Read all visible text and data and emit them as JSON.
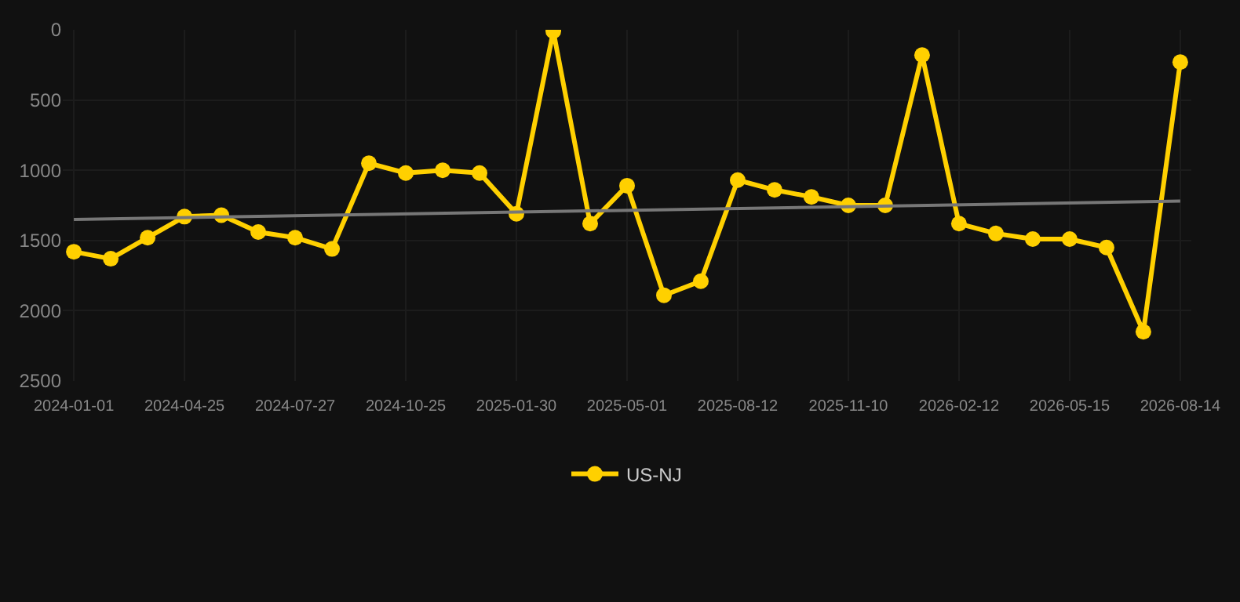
{
  "chart_data": {
    "type": "line",
    "categories": [
      "2024-01-01",
      null,
      null,
      "2024-04-25",
      null,
      null,
      "2024-07-27",
      null,
      null,
      "2024-10-25",
      null,
      null,
      "2025-01-30",
      null,
      null,
      "2025-05-01",
      null,
      null,
      "2025-08-12",
      null,
      null,
      "2025-11-10",
      null,
      null,
      "2026-02-12",
      null,
      null,
      "2026-05-15",
      null,
      null,
      "2026-08-14"
    ],
    "series": [
      {
        "name": "US-NJ",
        "color": "#ffd000",
        "marker": "circle",
        "values": [
          1580,
          1630,
          1480,
          1330,
          1320,
          1440,
          1480,
          1560,
          950,
          1020,
          1000,
          1020,
          1310,
          10,
          1380,
          1110,
          1890,
          1790,
          1070,
          1140,
          1190,
          1250,
          1250,
          180,
          1380,
          1450,
          1490,
          1490,
          1550,
          2150,
          230
        ]
      },
      {
        "type": "line",
        "color": "#777777",
        "marker": "none",
        "values": [
          1350,
          null,
          null,
          null,
          null,
          null,
          null,
          null,
          null,
          null,
          null,
          null,
          null,
          null,
          null,
          null,
          null,
          null,
          null,
          null,
          null,
          null,
          null,
          null,
          null,
          null,
          null,
          null,
          null,
          null,
          1220
        ]
      }
    ],
    "ylim": [
      2500,
      0
    ],
    "yticks": [
      0,
      500,
      1000,
      1500,
      2000,
      2500
    ],
    "grid": true,
    "legend": "bottom",
    "line_style": "solid"
  }
}
